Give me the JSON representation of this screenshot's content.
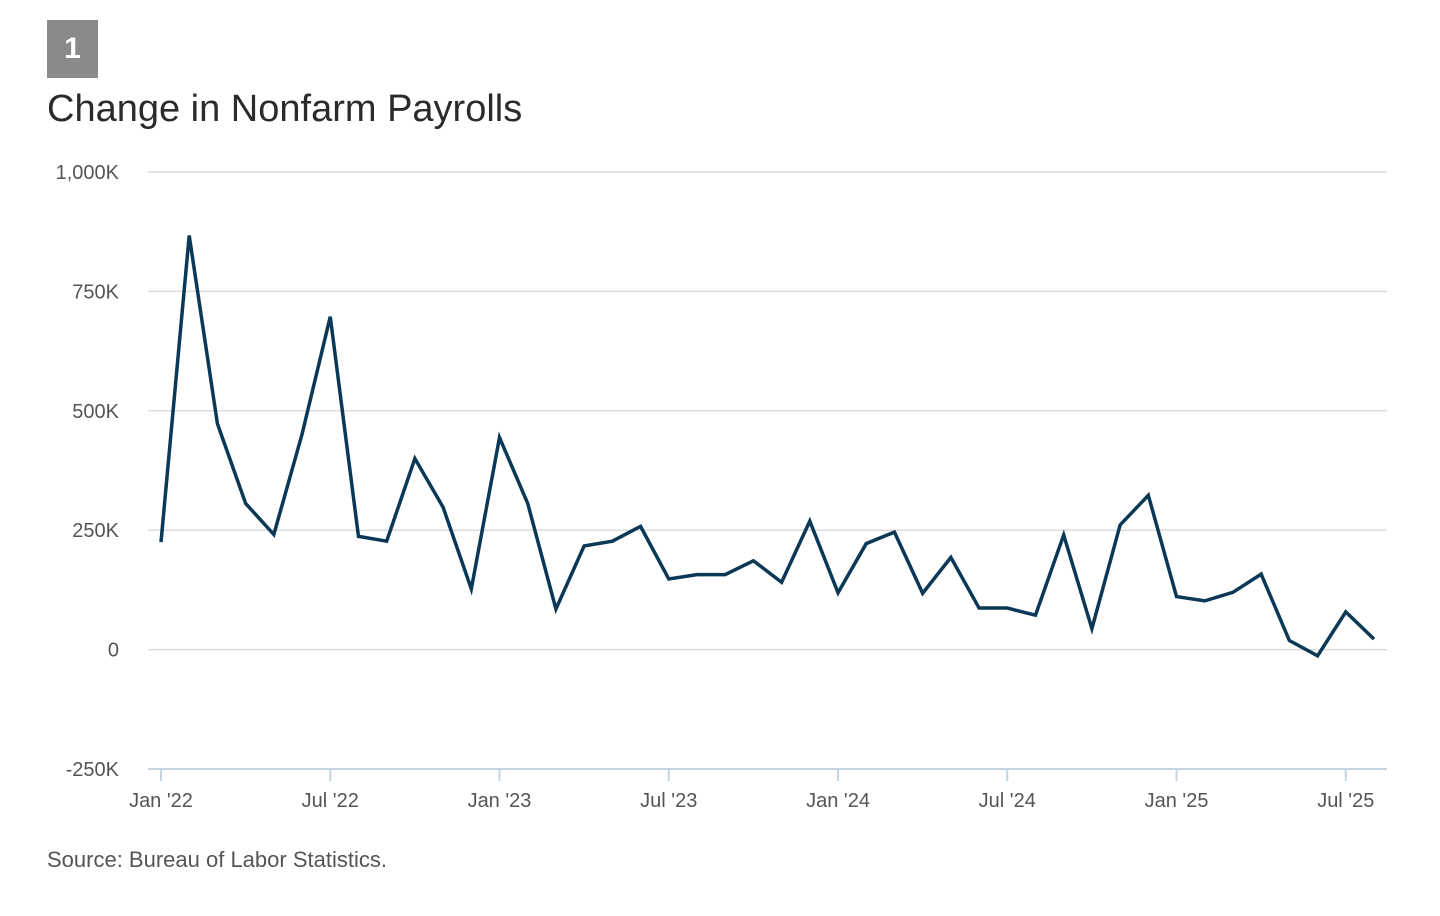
{
  "badge": "1",
  "title": "Change in Nonfarm Payrolls",
  "source": "Source: Bureau of Labor Statistics.",
  "colors": {
    "line": "#0a3856",
    "grid": "#dcdcdc",
    "axis": "#c6d4e2",
    "text": "#555555"
  },
  "chart_data": {
    "type": "line",
    "title": "Change in Nonfarm Payrolls",
    "xlabel": "",
    "ylabel": "",
    "ylim": [
      -250,
      1000
    ],
    "yticks": [
      -250,
      0,
      250,
      500,
      750,
      1000
    ],
    "ytick_labels": [
      "-250K",
      "0",
      "250K",
      "500K",
      "750K",
      "1,000K"
    ],
    "xtick_indices": [
      0,
      6,
      12,
      18,
      24,
      30,
      36,
      42
    ],
    "xtick_labels": [
      "Jan '22",
      "Jul '22",
      "Jan '23",
      "Jul '23",
      "Jan '24",
      "Jul '24",
      "Jan '25",
      "Jul '25"
    ],
    "grid": true,
    "series": [
      {
        "name": "Change in Nonfarm Payrolls (thousands)",
        "x": [
          "Jan '22",
          "Feb '22",
          "Mar '22",
          "Apr '22",
          "May '22",
          "Jun '22",
          "Jul '22",
          "Aug '22",
          "Sep '22",
          "Oct '22",
          "Nov '22",
          "Dec '22",
          "Jan '23",
          "Feb '23",
          "Mar '23",
          "Apr '23",
          "May '23",
          "Jun '23",
          "Jul '23",
          "Aug '23",
          "Sep '23",
          "Oct '23",
          "Nov '23",
          "Dec '23",
          "Jan '24",
          "Feb '24",
          "Mar '24",
          "Apr '24",
          "May '24",
          "Jun '24",
          "Jul '24",
          "Aug '24",
          "Sep '24",
          "Oct '24",
          "Nov '24",
          "Dec '24",
          "Jan '25",
          "Feb '25",
          "Mar '25",
          "Apr '25",
          "May '25",
          "Jun '25",
          "Jul '25",
          "Aug '25"
        ],
        "values": [
          225,
          867,
          473,
          306,
          241,
          451,
          697,
          237,
          227,
          400,
          298,
          127,
          444,
          306,
          85,
          217,
          227,
          258,
          148,
          157,
          157,
          186,
          141,
          269,
          119,
          222,
          246,
          118,
          193,
          87,
          87,
          72,
          240,
          44,
          261,
          323,
          111,
          102,
          120,
          158,
          19,
          -13,
          79,
          22
        ]
      }
    ]
  }
}
